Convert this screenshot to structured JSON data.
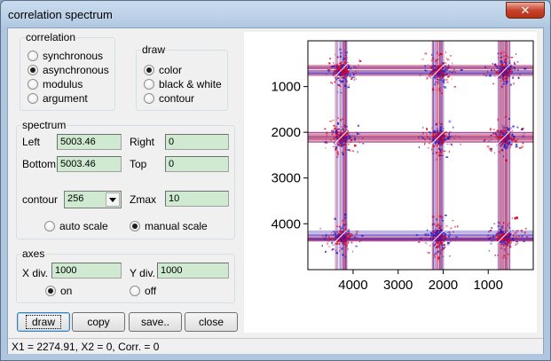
{
  "window": {
    "title": "correlation spectrum",
    "close_glyph": "✕"
  },
  "correlation": {
    "legend": "correlation",
    "options": [
      {
        "label": "synchronous",
        "checked": false
      },
      {
        "label": "asynchronous",
        "checked": true
      },
      {
        "label": "modulus",
        "checked": false
      },
      {
        "label": "argument",
        "checked": false
      }
    ]
  },
  "draw": {
    "legend": "draw",
    "options": [
      {
        "label": "color",
        "checked": true
      },
      {
        "label": "black & white",
        "checked": false
      },
      {
        "label": "contour",
        "checked": false
      }
    ]
  },
  "spectrum": {
    "legend": "spectrum",
    "left_label": "Left",
    "left_value": "5003.46",
    "right_label": "Right",
    "right_value": "0",
    "bottom_label": "Bottom",
    "bottom_value": "5003.46",
    "top_label": "Top",
    "top_value": "0",
    "contour_label": "contour",
    "contour_value": "256",
    "zmax_label": "Zmax",
    "zmax_value": "10",
    "auto_scale_label": "auto scale",
    "auto_scale_checked": false,
    "manual_scale_label": "manual scale",
    "manual_scale_checked": true
  },
  "axes": {
    "legend": "axes",
    "xdiv_label": "X div.",
    "xdiv_value": "1000",
    "ydiv_label": "Y div.",
    "ydiv_value": "1000",
    "on_label": "on",
    "on_checked": true,
    "off_label": "off",
    "off_checked": false
  },
  "buttons": {
    "draw": "draw",
    "copy": "copy",
    "save": "save..",
    "close": "close"
  },
  "status": {
    "text": "X1 = 2274.91,  X2 = 0,  Corr. = 0"
  },
  "chart_data": {
    "type": "heatmap",
    "title": "",
    "x_range": [
      5003.46,
      0
    ],
    "y_range": [
      0,
      5003.46
    ],
    "x_ticks": [
      4000,
      3000,
      2000,
      1000
    ],
    "y_ticks": [
      1000,
      2000,
      3000,
      4000
    ],
    "x_tick_labels": [
      "4000",
      "3000",
      "2000",
      "1000"
    ],
    "y_tick_labels": [
      "1000",
      "2000",
      "3000",
      "4000"
    ],
    "peak_positions": [
      4270,
      2110,
      650
    ],
    "colors": {
      "positive": "#e0001a",
      "negative": "#1c1ccf",
      "background": "#ffffff"
    },
    "grid": false
  }
}
